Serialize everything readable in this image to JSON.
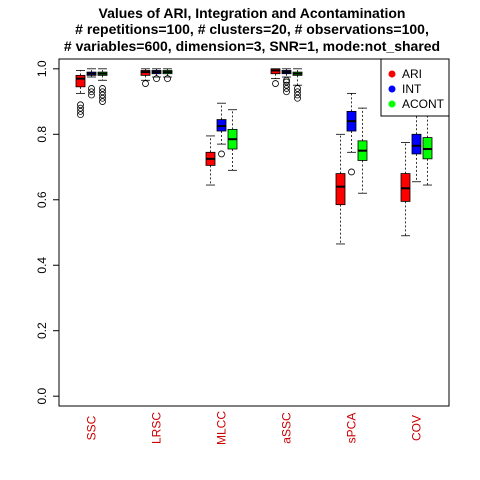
{
  "chart_data": {
    "type": "boxplot",
    "title_lines": [
      "Values of ARI, Integration and Acontamination",
      "# repetitions=100, # clusters=20, # observations=100,",
      "# variables=600, dimension=3, SNR=1, mode:not_shared"
    ],
    "xlabel": "",
    "ylabel": "",
    "ylim": [
      -0.03,
      1.03
    ],
    "yticks": [
      "0.0",
      "0.2",
      "0.4",
      "0.6",
      "0.8",
      "1.0"
    ],
    "category_label_color": "#cc0000",
    "categories": [
      "SSC",
      "LRSC",
      "MLCC",
      "aSSC",
      "sPCA",
      "COV"
    ],
    "series": [
      {
        "name": "ARI",
        "color": "#ff0000",
        "boxes": [
          {
            "whisker_low": 0.925,
            "q1": 0.945,
            "median": 0.97,
            "q3": 0.98,
            "whisker_high": 0.995,
            "outliers": [
              0.86,
              0.87,
              0.88,
              0.89
            ]
          },
          {
            "whisker_low": 0.965,
            "q1": 0.98,
            "median": 0.99,
            "q3": 0.995,
            "whisker_high": 1.0,
            "outliers": [
              0.955
            ]
          },
          {
            "whisker_low": 0.645,
            "q1": 0.705,
            "median": 0.725,
            "q3": 0.745,
            "whisker_high": 0.795,
            "outliers": []
          },
          {
            "whisker_low": 0.97,
            "q1": 0.985,
            "median": 0.995,
            "q3": 1.0,
            "whisker_high": 1.0,
            "outliers": [
              0.955
            ]
          },
          {
            "whisker_low": 0.465,
            "q1": 0.585,
            "median": 0.64,
            "q3": 0.68,
            "whisker_high": 0.8,
            "outliers": []
          },
          {
            "whisker_low": 0.49,
            "q1": 0.595,
            "median": 0.635,
            "q3": 0.68,
            "whisker_high": 0.775,
            "outliers": []
          }
        ]
      },
      {
        "name": "INT",
        "color": "#0000ff",
        "boxes": [
          {
            "whisker_low": 0.975,
            "q1": 0.98,
            "median": 0.985,
            "q3": 0.99,
            "whisker_high": 1.0,
            "outliers": [
              0.92,
              0.93,
              0.94
            ]
          },
          {
            "whisker_low": 0.975,
            "q1": 0.985,
            "median": 0.99,
            "q3": 0.995,
            "whisker_high": 1.0,
            "outliers": [
              0.97
            ]
          },
          {
            "whisker_low": 0.77,
            "q1": 0.81,
            "median": 0.825,
            "q3": 0.845,
            "whisker_high": 0.895,
            "outliers": [
              0.74
            ]
          },
          {
            "whisker_low": 0.975,
            "q1": 0.985,
            "median": 0.99,
            "q3": 0.995,
            "whisker_high": 1.0,
            "outliers": [
              0.93,
              0.94,
              0.95,
              0.96,
              0.965
            ]
          },
          {
            "whisker_low": 0.745,
            "q1": 0.81,
            "median": 0.84,
            "q3": 0.87,
            "whisker_high": 0.925,
            "outliers": [
              0.685
            ]
          },
          {
            "whisker_low": 0.655,
            "q1": 0.74,
            "median": 0.765,
            "q3": 0.8,
            "whisker_high": 0.87,
            "outliers": []
          }
        ]
      },
      {
        "name": "ACONT",
        "color": "#00ff00",
        "boxes": [
          {
            "whisker_low": 0.965,
            "q1": 0.98,
            "median": 0.985,
            "q3": 0.99,
            "whisker_high": 1.0,
            "outliers": [
              0.9,
              0.91,
              0.92,
              0.93,
              0.94
            ]
          },
          {
            "whisker_low": 0.975,
            "q1": 0.985,
            "median": 0.99,
            "q3": 0.995,
            "whisker_high": 1.0,
            "outliers": [
              0.97
            ]
          },
          {
            "whisker_low": 0.69,
            "q1": 0.755,
            "median": 0.785,
            "q3": 0.815,
            "whisker_high": 0.875,
            "outliers": []
          },
          {
            "whisker_low": 0.95,
            "q1": 0.98,
            "median": 0.985,
            "q3": 0.99,
            "whisker_high": 1.0,
            "outliers": [
              0.91,
              0.92,
              0.93,
              0.94
            ]
          },
          {
            "whisker_low": 0.62,
            "q1": 0.72,
            "median": 0.75,
            "q3": 0.78,
            "whisker_high": 0.88,
            "outliers": []
          },
          {
            "whisker_low": 0.645,
            "q1": 0.725,
            "median": 0.755,
            "q3": 0.79,
            "whisker_high": 0.865,
            "outliers": []
          }
        ]
      }
    ],
    "legend": {
      "position": "top-right",
      "entries": [
        "ARI",
        "INT",
        "ACONT"
      ]
    },
    "grid": false
  }
}
